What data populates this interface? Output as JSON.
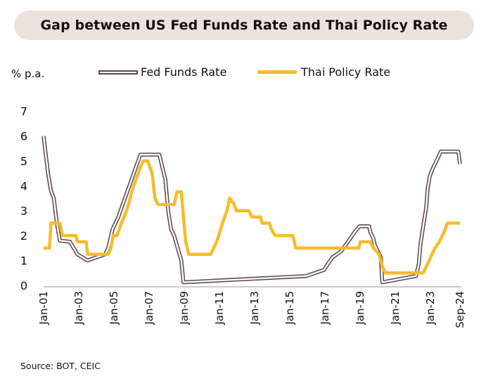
{
  "title": "Gap between US Fed Funds Rate and Thai Policy Rate",
  "y_unit": "% p.a.",
  "source": "Source: BOT, CEIC",
  "colors": {
    "fed": "#5a4a48",
    "thai": "#f6bd2a",
    "title_bg": "#ece3df"
  },
  "chart_data": {
    "type": "line",
    "title": "Gap between US Fed Funds Rate and Thai Policy Rate",
    "ylabel": "% p.a.",
    "ylim": [
      0,
      7
    ],
    "yticks": [
      0,
      1,
      2,
      3,
      4,
      5,
      6,
      7
    ],
    "xlim": [
      2001.0,
      2024.75
    ],
    "xticks": [
      {
        "label": "Jan-01",
        "x": 2001.0
      },
      {
        "label": "Jan-03",
        "x": 2003.0
      },
      {
        "label": "Jan-05",
        "x": 2005.0
      },
      {
        "label": "Jan-07",
        "x": 2007.0
      },
      {
        "label": "Jan-09",
        "x": 2009.0
      },
      {
        "label": "Jan-11",
        "x": 2011.0
      },
      {
        "label": "Jan-13",
        "x": 2013.0
      },
      {
        "label": "Jan-15",
        "x": 2015.0
      },
      {
        "label": "Jan-17",
        "x": 2017.0
      },
      {
        "label": "Jan-19",
        "x": 2019.0
      },
      {
        "label": "Jan-21",
        "x": 2021.0
      },
      {
        "label": "Jan-23",
        "x": 2023.0
      },
      {
        "label": "Sep-24",
        "x": 2024.67
      }
    ],
    "legend_position": "top",
    "grid": false,
    "series": [
      {
        "name": "Fed Funds Rate",
        "style": "outlined",
        "points": [
          [
            2001.0,
            6.0
          ],
          [
            2001.08,
            5.5
          ],
          [
            2001.25,
            4.5
          ],
          [
            2001.42,
            3.8
          ],
          [
            2001.58,
            3.5
          ],
          [
            2001.75,
            2.5
          ],
          [
            2001.92,
            1.8
          ],
          [
            2002.5,
            1.75
          ],
          [
            2002.92,
            1.25
          ],
          [
            2003.5,
            1.0
          ],
          [
            2004.5,
            1.25
          ],
          [
            2004.67,
            1.5
          ],
          [
            2004.92,
            2.25
          ],
          [
            2005.25,
            2.75
          ],
          [
            2005.5,
            3.25
          ],
          [
            2005.75,
            3.75
          ],
          [
            2006.0,
            4.25
          ],
          [
            2006.25,
            4.75
          ],
          [
            2006.5,
            5.25
          ],
          [
            2007.58,
            5.25
          ],
          [
            2007.75,
            4.75
          ],
          [
            2007.92,
            4.25
          ],
          [
            2008.08,
            3.0
          ],
          [
            2008.25,
            2.25
          ],
          [
            2008.42,
            2.0
          ],
          [
            2008.83,
            1.0
          ],
          [
            2008.95,
            0.125
          ],
          [
            2015.92,
            0.375
          ],
          [
            2016.95,
            0.625
          ],
          [
            2017.17,
            0.875
          ],
          [
            2017.42,
            1.125
          ],
          [
            2017.92,
            1.375
          ],
          [
            2018.17,
            1.625
          ],
          [
            2018.42,
            1.875
          ],
          [
            2018.67,
            2.125
          ],
          [
            2018.95,
            2.375
          ],
          [
            2019.5,
            2.375
          ],
          [
            2019.58,
            2.125
          ],
          [
            2019.75,
            1.875
          ],
          [
            2019.83,
            1.625
          ],
          [
            2020.17,
            1.125
          ],
          [
            2020.25,
            0.125
          ],
          [
            2022.17,
            0.375
          ],
          [
            2022.33,
            0.875
          ],
          [
            2022.42,
            1.625
          ],
          [
            2022.58,
            2.375
          ],
          [
            2022.75,
            3.125
          ],
          [
            2022.83,
            3.875
          ],
          [
            2022.95,
            4.375
          ],
          [
            2023.08,
            4.625
          ],
          [
            2023.25,
            4.875
          ],
          [
            2023.42,
            5.125
          ],
          [
            2023.58,
            5.375
          ],
          [
            2024.58,
            5.375
          ],
          [
            2024.67,
            4.875
          ]
        ]
      },
      {
        "name": "Thai Policy Rate",
        "style": "solid",
        "points": [
          [
            2001.0,
            1.5
          ],
          [
            2001.33,
            1.5
          ],
          [
            2001.42,
            2.5
          ],
          [
            2001.92,
            2.5
          ],
          [
            2002.08,
            2.0
          ],
          [
            2002.83,
            2.0
          ],
          [
            2002.92,
            1.75
          ],
          [
            2003.42,
            1.75
          ],
          [
            2003.5,
            1.25
          ],
          [
            2004.67,
            1.25
          ],
          [
            2004.83,
            1.5
          ],
          [
            2004.95,
            2.0
          ],
          [
            2005.17,
            2.0
          ],
          [
            2005.42,
            2.5
          ],
          [
            2005.58,
            2.75
          ],
          [
            2005.83,
            3.25
          ],
          [
            2006.0,
            3.75
          ],
          [
            2006.25,
            4.25
          ],
          [
            2006.5,
            4.75
          ],
          [
            2006.67,
            5.0
          ],
          [
            2006.92,
            5.0
          ],
          [
            2007.17,
            4.5
          ],
          [
            2007.33,
            3.5
          ],
          [
            2007.5,
            3.25
          ],
          [
            2008.42,
            3.25
          ],
          [
            2008.58,
            3.75
          ],
          [
            2008.83,
            3.75
          ],
          [
            2008.95,
            2.75
          ],
          [
            2009.08,
            1.75
          ],
          [
            2009.25,
            1.25
          ],
          [
            2010.5,
            1.25
          ],
          [
            2010.67,
            1.5
          ],
          [
            2010.83,
            1.75
          ],
          [
            2010.95,
            2.0
          ],
          [
            2011.17,
            2.5
          ],
          [
            2011.42,
            3.0
          ],
          [
            2011.58,
            3.5
          ],
          [
            2011.83,
            3.25
          ],
          [
            2011.95,
            3.0
          ],
          [
            2012.67,
            3.0
          ],
          [
            2012.83,
            2.75
          ],
          [
            2013.33,
            2.75
          ],
          [
            2013.42,
            2.5
          ],
          [
            2013.83,
            2.5
          ],
          [
            2013.95,
            2.25
          ],
          [
            2014.17,
            2.0
          ],
          [
            2015.17,
            2.0
          ],
          [
            2015.33,
            1.5
          ],
          [
            2018.92,
            1.5
          ],
          [
            2019.0,
            1.75
          ],
          [
            2019.58,
            1.75
          ],
          [
            2019.75,
            1.5
          ],
          [
            2020.08,
            1.25
          ],
          [
            2020.25,
            0.75
          ],
          [
            2020.42,
            0.5
          ],
          [
            2022.58,
            0.5
          ],
          [
            2022.75,
            0.75
          ],
          [
            2022.92,
            1.0
          ],
          [
            2023.08,
            1.25
          ],
          [
            2023.25,
            1.5
          ],
          [
            2023.5,
            1.75
          ],
          [
            2023.67,
            2.0
          ],
          [
            2023.83,
            2.25
          ],
          [
            2023.95,
            2.5
          ],
          [
            2024.67,
            2.5
          ]
        ]
      }
    ]
  }
}
